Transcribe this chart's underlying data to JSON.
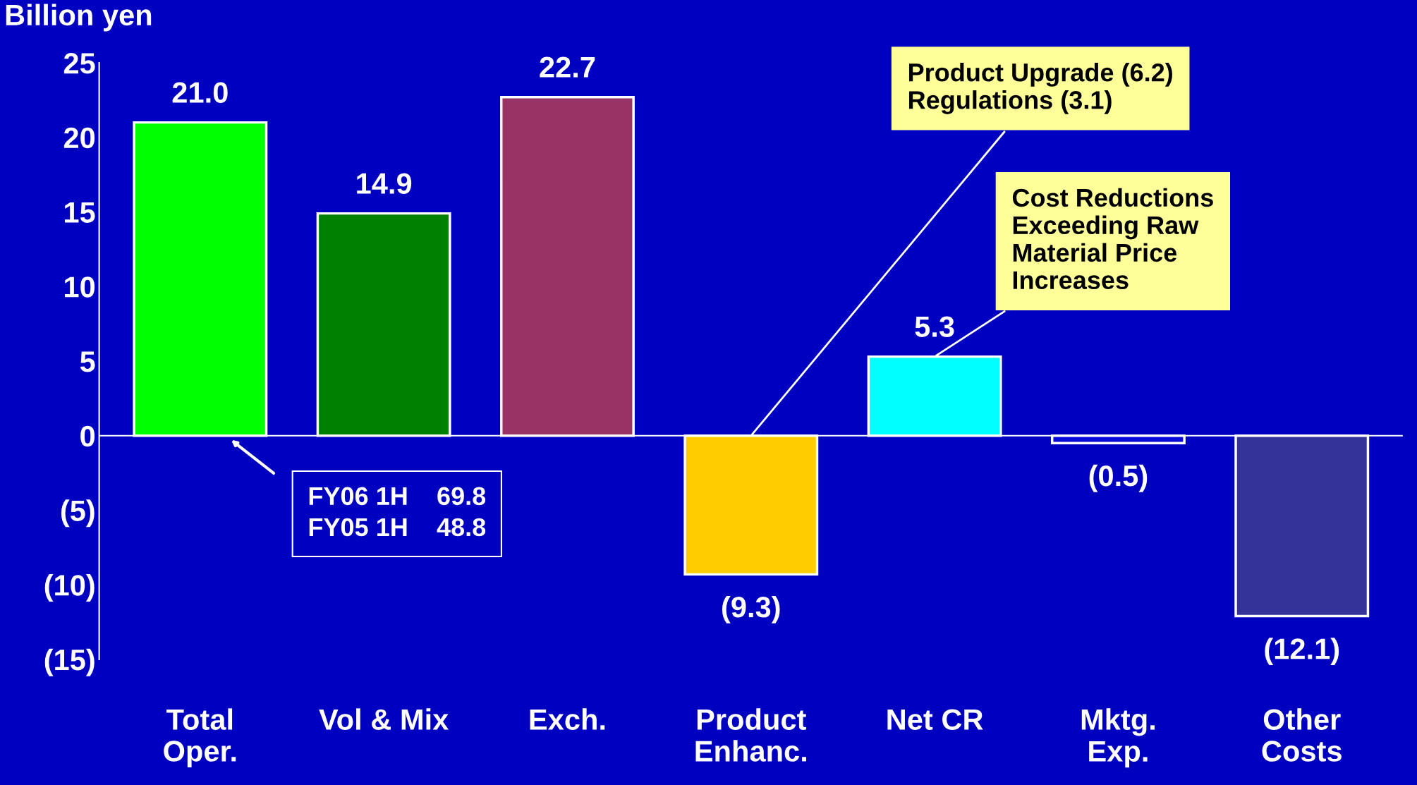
{
  "chart_data": {
    "type": "bar",
    "ylabel": "Billion yen",
    "categories": [
      "Total\nOper.",
      "Vol & Mix",
      "Exch.",
      "Product\nEnhanc.",
      "Net CR",
      "Mktg.\nExp.",
      "Other\nCosts"
    ],
    "values": [
      21.0,
      14.9,
      22.7,
      -9.3,
      5.3,
      -0.5,
      -12.1
    ],
    "colors": [
      "#00ff00",
      "#008000",
      "#993366",
      "#ffcc00",
      "#00ffff",
      "#0a0ad8",
      "#333399"
    ],
    "value_labels": [
      "21.0",
      "14.9",
      "22.7",
      "(9.3)",
      "5.3",
      "(0.5)",
      "(12.1)"
    ],
    "ylim": [
      -15,
      25
    ],
    "yticks": [
      {
        "value": -15,
        "label": "(15)"
      },
      {
        "value": -10,
        "label": "(10)"
      },
      {
        "value": -5,
        "label": "(5)"
      },
      0,
      5,
      10,
      15,
      20,
      25
    ],
    "annotations": [
      {
        "text": "Product Upgrade (6.2)\nRegulations (3.1)",
        "x": "Product\nEnhanc.",
        "y": 0
      },
      {
        "text": "Cost Reductions\nExceeding Raw\nMaterial Price\nIncreases",
        "x": "Net CR",
        "y": 5.3
      },
      "FY06 1H    69.8\nFY05 1H    48.8"
    ]
  }
}
